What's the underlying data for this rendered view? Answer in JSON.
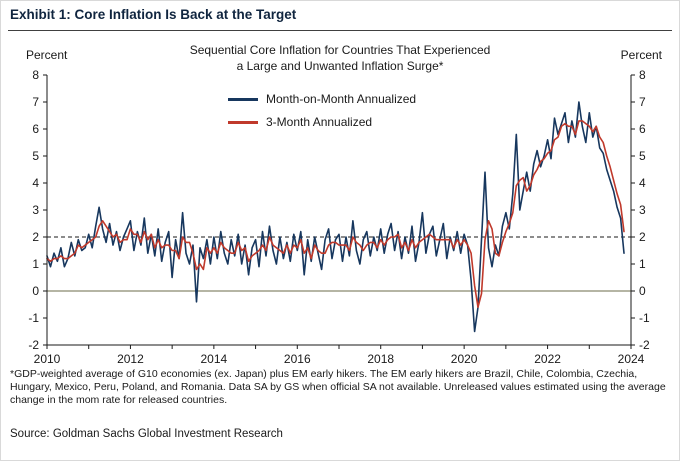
{
  "header": {
    "title": "Exhibit 1: Core Inflation Is Back at the Target"
  },
  "chart": {
    "subtitle_line1": "Sequential Core Inflation for Countries That Experienced",
    "subtitle_line2": "a Large and Unwanted Inflation Surge*",
    "left_axis_label": "Percent",
    "right_axis_label": "Percent",
    "legend": [
      {
        "label": "Month-on-Month Annualized",
        "color": "#17375e"
      },
      {
        "label": "3-Month Annualized",
        "color": "#c0392b"
      }
    ]
  },
  "chart_data": {
    "type": "line",
    "title": "Sequential Core Inflation for Countries That Experienced a Large and Unwanted Inflation Surge*",
    "xlabel": "",
    "ylabel": "Percent",
    "x_start_year": 2010,
    "x_end_year": 2024,
    "x_frequency": "monthly",
    "x_tick_labels": [
      "2010",
      "2012",
      "2014",
      "2016",
      "2018",
      "2020",
      "2022",
      "2024"
    ],
    "ylim": [
      -2,
      8
    ],
    "y_ticks": [
      -2,
      -1,
      0,
      1,
      2,
      3,
      4,
      5,
      6,
      7,
      8
    ],
    "grid": false,
    "legend_position": "top-center-inside",
    "reference_lines": [
      {
        "y": 2,
        "style": "dashed",
        "color": "#1a1a1a",
        "meaning": "inflation target"
      },
      {
        "y": 0,
        "style": "solid",
        "color": "#6b6b4a",
        "meaning": "zero line"
      }
    ],
    "series": [
      {
        "name": "Month-on-Month Annualized",
        "color": "#17375e",
        "values": [
          1.3,
          0.9,
          1.4,
          1.1,
          1.6,
          0.9,
          1.2,
          1.8,
          1.3,
          1.9,
          1.5,
          1.6,
          2.1,
          1.6,
          2.4,
          3.1,
          2.3,
          1.8,
          2.5,
          1.7,
          2.2,
          1.5,
          2.0,
          2.3,
          2.6,
          1.5,
          2.2,
          1.7,
          2.7,
          1.4,
          2.1,
          1.3,
          2.3,
          1.1,
          1.8,
          2.2,
          0.5,
          1.9,
          1.2,
          2.9,
          1.4,
          1.0,
          1.7,
          -0.4,
          1.6,
          1.2,
          1.9,
          1.0,
          2.0,
          1.2,
          2.2,
          1.4,
          1.0,
          1.9,
          1.3,
          2.1,
          1.0,
          1.7,
          0.6,
          1.6,
          1.9,
          0.9,
          2.2,
          1.3,
          2.4,
          1.5,
          1.0,
          2.0,
          1.2,
          1.8,
          1.1,
          2.1,
          1.5,
          2.2,
          0.6,
          1.9,
          1.1,
          2.0,
          1.4,
          0.8,
          1.9,
          2.3,
          1.2,
          1.9,
          2.1,
          1.1,
          2.0,
          1.3,
          2.6,
          1.5,
          1.0,
          1.9,
          2.2,
          1.3,
          2.0,
          1.5,
          2.3,
          1.4,
          2.1,
          2.5,
          1.5,
          2.2,
          1.2,
          2.0,
          1.4,
          2.4,
          1.1,
          1.8,
          2.9,
          1.4,
          2.1,
          2.4,
          1.3,
          1.9,
          2.5,
          1.2,
          2.0,
          1.5,
          2.2,
          1.4,
          2.1,
          1.7,
          0.4,
          -1.5,
          -0.6,
          1.9,
          4.4,
          1.6,
          0.9,
          1.7,
          1.3,
          2.4,
          2.9,
          2.3,
          3.6,
          5.8,
          3.0,
          3.7,
          4.4,
          3.7,
          4.7,
          5.2,
          4.6,
          5.0,
          5.6,
          4.9,
          6.4,
          5.8,
          6.2,
          6.6,
          5.5,
          6.3,
          5.7,
          7.0,
          6.1,
          5.5,
          6.6,
          5.7,
          6.1,
          5.3,
          5.1,
          4.5,
          4.1,
          3.7,
          3.1,
          2.7,
          1.4
        ]
      },
      {
        "name": "3-Month Annualized",
        "color": "#c0392b",
        "values": [
          1.2,
          1.1,
          1.2,
          1.2,
          1.3,
          1.2,
          1.2,
          1.3,
          1.4,
          1.7,
          1.6,
          1.7,
          1.8,
          1.9,
          2.0,
          2.4,
          2.6,
          2.4,
          2.2,
          2.0,
          2.1,
          1.8,
          1.9,
          1.9,
          2.3,
          2.1,
          2.1,
          1.8,
          2.2,
          1.9,
          2.1,
          1.6,
          1.9,
          1.6,
          1.7,
          1.7,
          1.5,
          1.5,
          1.2,
          2.0,
          1.8,
          1.8,
          1.4,
          0.8,
          1.0,
          0.8,
          1.6,
          1.4,
          1.6,
          1.4,
          1.8,
          1.6,
          1.5,
          1.4,
          1.4,
          1.8,
          1.5,
          1.6,
          1.1,
          1.3,
          1.4,
          1.5,
          1.7,
          1.5,
          2.0,
          1.7,
          1.6,
          1.5,
          1.4,
          1.7,
          1.4,
          1.7,
          1.6,
          1.9,
          1.4,
          1.6,
          1.2,
          1.7,
          1.5,
          1.4,
          1.4,
          1.7,
          1.8,
          1.8,
          1.7,
          1.7,
          1.7,
          1.5,
          2.0,
          1.8,
          1.7,
          1.5,
          1.7,
          1.8,
          1.8,
          1.6,
          1.9,
          1.7,
          1.9,
          2.0,
          2.0,
          2.1,
          1.6,
          1.8,
          1.5,
          1.9,
          1.6,
          1.8,
          1.9,
          2.0,
          2.1,
          2.0,
          1.9,
          1.9,
          1.9,
          1.9,
          1.9,
          1.6,
          1.9,
          1.7,
          1.9,
          1.7,
          1.4,
          0.2,
          -0.6,
          -0.1,
          1.9,
          2.6,
          2.3,
          1.4,
          1.3,
          1.8,
          2.2,
          2.5,
          2.9,
          3.9,
          4.1,
          4.2,
          3.7,
          3.9,
          4.3,
          4.5,
          4.8,
          4.9,
          5.1,
          5.2,
          5.6,
          5.7,
          6.1,
          6.2,
          6.1,
          6.1,
          5.8,
          6.3,
          6.3,
          6.2,
          6.1,
          5.9,
          6.1,
          5.7,
          5.5,
          5.0,
          4.6,
          4.1,
          3.6,
          3.2,
          2.2
        ]
      }
    ]
  },
  "footnote": {
    "text": "*GDP-weighted average of G10 economies (ex. Japan) plus EM early hikers. The EM early hikers are Brazil, Chile, Colombia, Czechia, Hungary, Mexico, Peru, Poland, and Romania. Data SA by GS when official SA not available. Unreleased values estimated using the average change in the mom rate for released countries."
  },
  "source": {
    "text": "Source: Goldman Sachs Global Investment Research"
  }
}
